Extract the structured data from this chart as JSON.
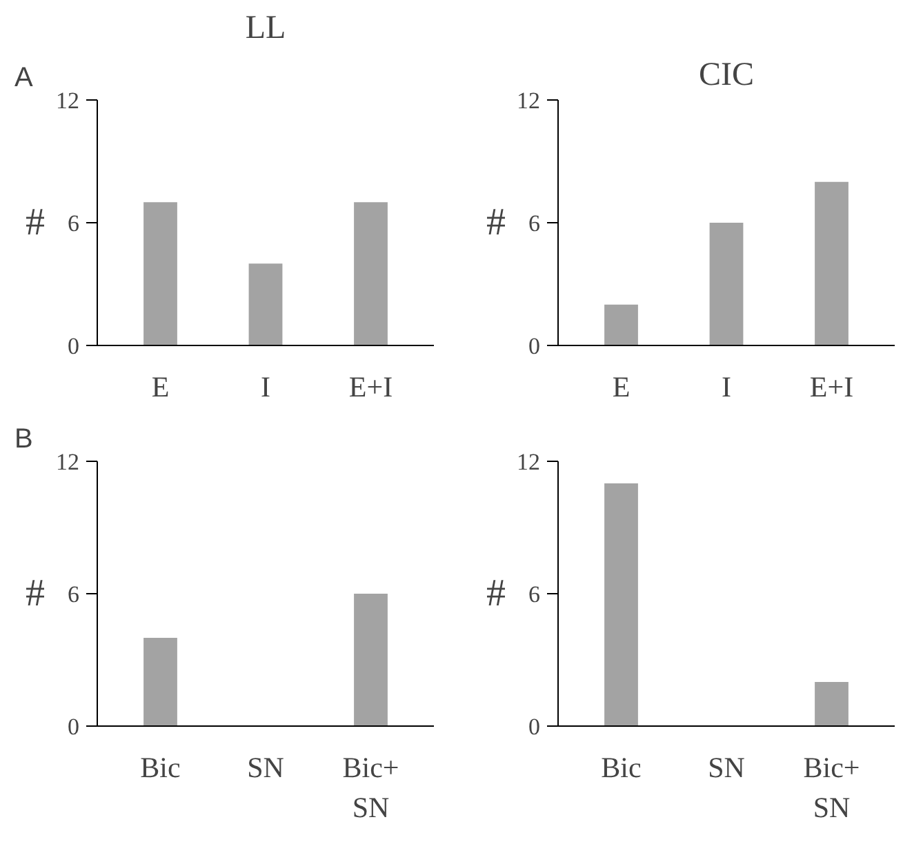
{
  "chart_data": [
    {
      "type": "bar",
      "title": "LL",
      "annotations": [
        "A"
      ],
      "ylabel": "#",
      "categories": [
        "E",
        "I",
        "E+I"
      ],
      "values": [
        7,
        4,
        7
      ],
      "color": "#a3a3a3",
      "ylim": [
        0,
        12
      ],
      "yticks": [
        0,
        6,
        12
      ],
      "grid": false
    },
    {
      "type": "bar",
      "title": "CIC",
      "ylabel": "#",
      "categories": [
        "E",
        "I",
        "E+I"
      ],
      "values": [
        2,
        6,
        8
      ],
      "color": "#a3a3a3",
      "ylim": [
        0,
        12
      ],
      "yticks": [
        0,
        6,
        12
      ],
      "grid": false
    },
    {
      "type": "bar",
      "annotations": [
        "B"
      ],
      "ylabel": "#",
      "categories": [
        "Bic",
        "SN",
        "Bic+\nSN"
      ],
      "values": [
        4,
        0,
        6
      ],
      "color": "#a3a3a3",
      "ylim": [
        0,
        12
      ],
      "yticks": [
        0,
        6,
        12
      ],
      "grid": false
    },
    {
      "type": "bar",
      "ylabel": "#",
      "categories": [
        "Bic",
        "SN",
        "Bic+\nSN"
      ],
      "values": [
        11,
        0,
        2
      ],
      "color": "#a3a3a3",
      "ylim": [
        0,
        12
      ],
      "yticks": [
        0,
        6,
        12
      ],
      "grid": false
    }
  ]
}
